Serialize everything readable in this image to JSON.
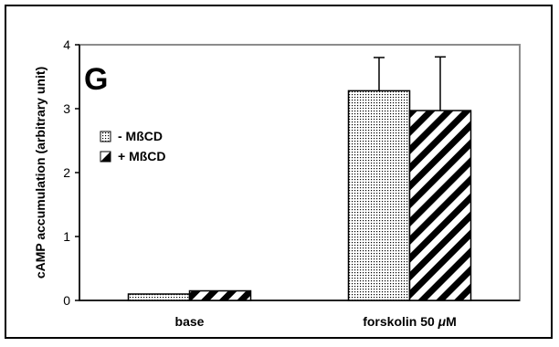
{
  "panel_label": "G",
  "colors": {
    "frame": "#000000",
    "plot_border": "#8c8c8c",
    "bar_edge": "#000000"
  },
  "chart_data": {
    "type": "bar",
    "categories": [
      "base",
      "forskolin 50 μM"
    ],
    "category_parts": [
      {
        "text": "base",
        "italic": "",
        "rest": ""
      },
      {
        "text": "forskolin 50 ",
        "italic": "μ",
        "rest": "M"
      }
    ],
    "series": [
      {
        "name": "- MßCD",
        "pattern": "dots",
        "values": [
          0.1,
          3.28
        ],
        "errors": [
          0.0,
          0.52
        ]
      },
      {
        "name": "+ MßCD",
        "pattern": "diagonal-stripes",
        "values": [
          0.15,
          2.97
        ],
        "errors": [
          0.0,
          0.84
        ]
      }
    ],
    "ylabel": "cAMP accumulation (arbitrary unit)",
    "xlabel": "",
    "ylim": [
      0,
      4
    ],
    "yticks": [
      0,
      1,
      2,
      3,
      4
    ],
    "grid": false,
    "legend_position": "left"
  }
}
